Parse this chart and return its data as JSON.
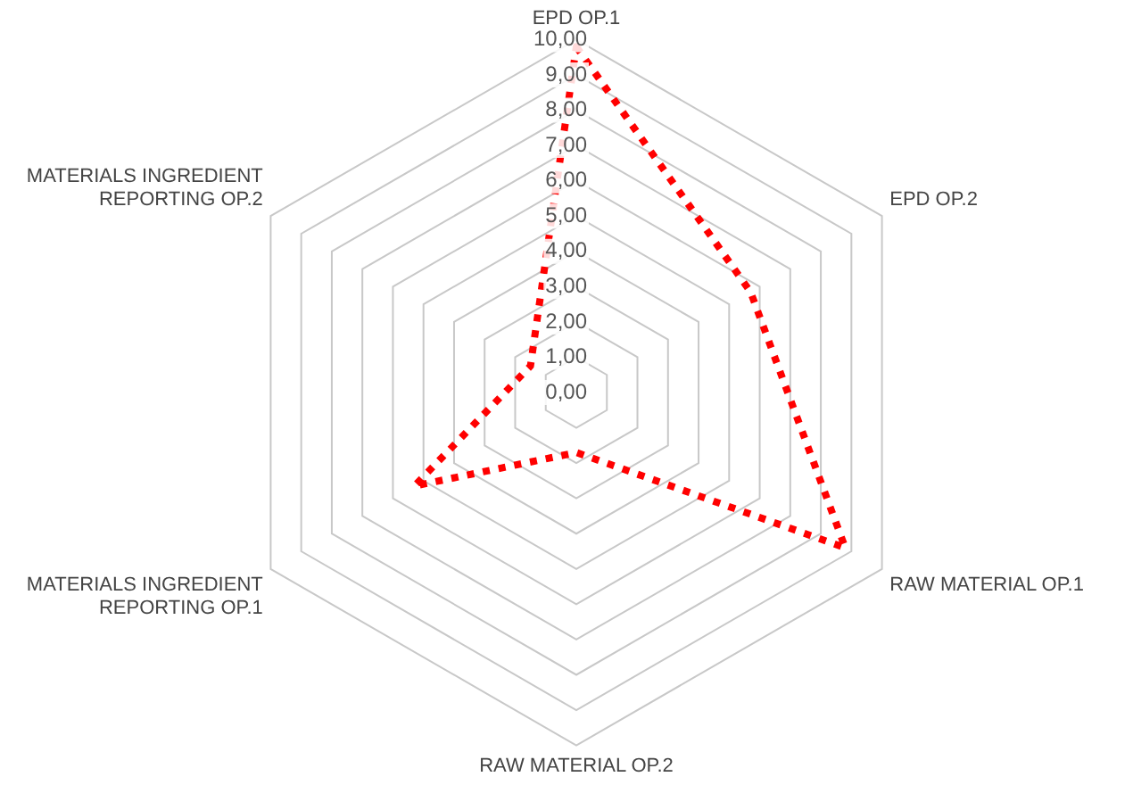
{
  "chart_data": {
    "type": "radar",
    "categories": [
      "EPD OP.1",
      "EPD OP.2",
      "RAW MATERIAL OP.1",
      "RAW MATERIAL OP.2",
      "MATERIALS INGREDIENT REPORTING OP.1",
      "MATERIALS INGREDIENT REPORTING OP.2"
    ],
    "series": [
      {
        "color": "#ff0000",
        "values": [
          9.8,
          5.7,
          8.8,
          1.7,
          5.3,
          1.5
        ]
      }
    ],
    "ylim": [
      0,
      10
    ],
    "yticks": [
      {
        "value": 0,
        "label": "0,00"
      },
      {
        "value": 1,
        "label": "1,00"
      },
      {
        "value": 2,
        "label": "2,00"
      },
      {
        "value": 3,
        "label": "3,00"
      },
      {
        "value": 4,
        "label": "4,00"
      },
      {
        "value": 5,
        "label": "5,00"
      },
      {
        "value": 6,
        "label": "6,00"
      },
      {
        "value": 7,
        "label": "7,00"
      },
      {
        "value": 8,
        "label": "8,00"
      },
      {
        "value": 9,
        "label": "9,00"
      },
      {
        "value": 10,
        "label": "10,00"
      }
    ],
    "grid": true,
    "legend": false,
    "marker": "none",
    "line_style": "dotted"
  }
}
